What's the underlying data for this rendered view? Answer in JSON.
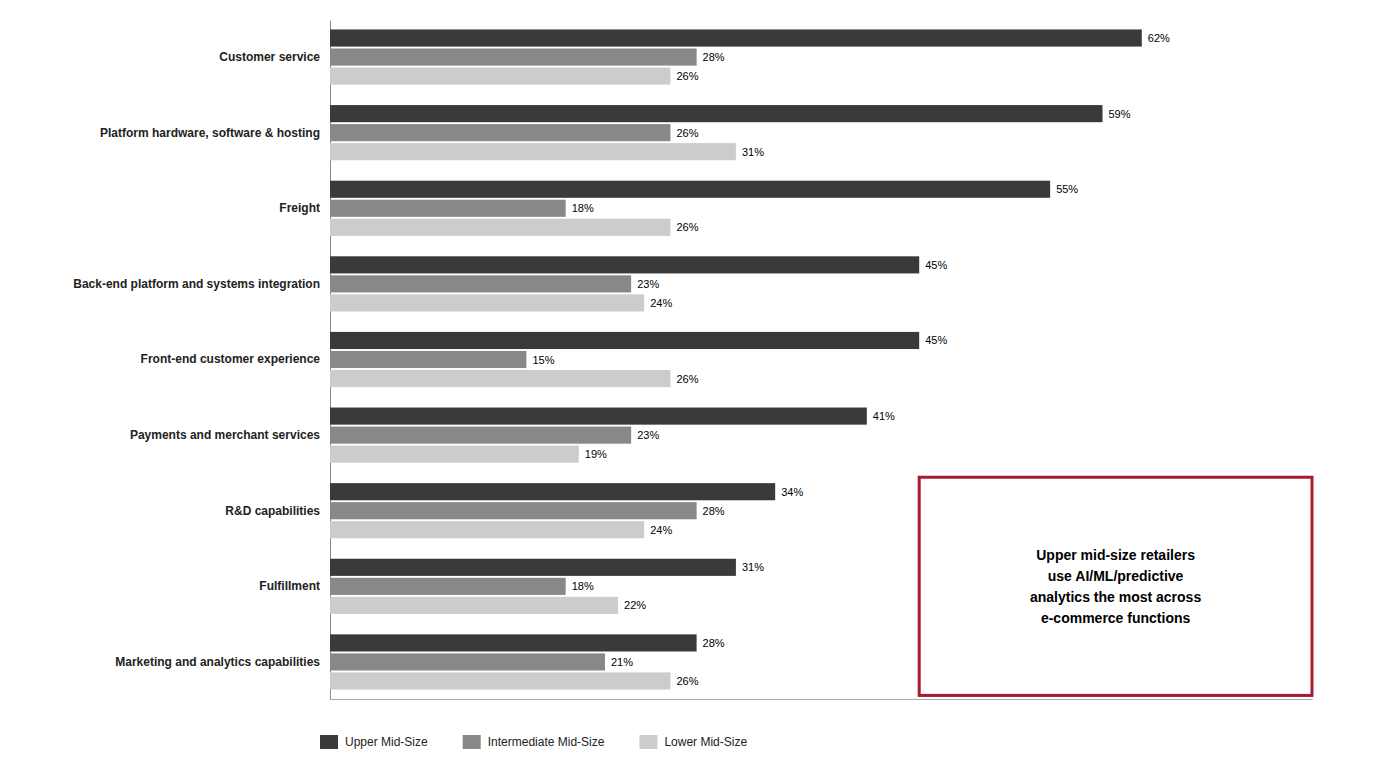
{
  "chart_data": {
    "type": "bar",
    "orientation": "horizontal",
    "categories": [
      "Customer service",
      "Platform hardware, software & hosting",
      "Freight",
      "Back-end platform and systems integration",
      "Front-end customer experience",
      "Payments and merchant services",
      "R&D capabilities",
      "Fulfillment",
      "Marketing and analytics capabilities"
    ],
    "series": [
      {
        "name": "Upper Mid-Size",
        "color": "#3a3a3a",
        "values": [
          62,
          59,
          55,
          45,
          45,
          41,
          34,
          31,
          28
        ],
        "value_labels": [
          "62%",
          "59%",
          "55%",
          "45%",
          "45%",
          "41%",
          "34%",
          "31%",
          "28%"
        ]
      },
      {
        "name": "Intermediate Mid-Size",
        "color": "#888888",
        "values": [
          28,
          26,
          18,
          23,
          15,
          23,
          28,
          18,
          21
        ],
        "value_labels": [
          "28%",
          "26%",
          "18%",
          "23%",
          "15%",
          "23%",
          "28%",
          "18%",
          "21%"
        ]
      },
      {
        "name": "Lower Mid-Size",
        "color": "#cccccc",
        "values": [
          26,
          31,
          26,
          24,
          26,
          19,
          24,
          22,
          26
        ],
        "value_labels": [
          "26%",
          "31%",
          "26%",
          "24%",
          "26%",
          "19%",
          "24%",
          "22%",
          "26%"
        ]
      }
    ],
    "xlim": [
      0,
      75
    ],
    "data_labels": true,
    "tick_labels": "y",
    "grid": false,
    "legend": "bottom",
    "annotations": [
      {
        "text": "Upper mid-size retailers\nuse AI/ML/predictive\nanalytics the most across\ne-commerce functions",
        "color": "#a61c2e"
      }
    ]
  }
}
